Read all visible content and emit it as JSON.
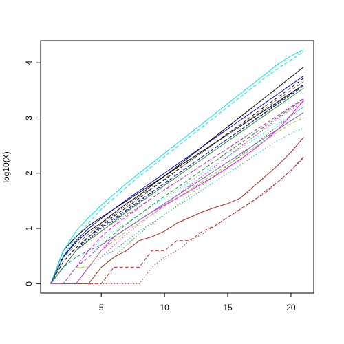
{
  "chart_data": {
    "type": "line",
    "title": "",
    "xlabel": "",
    "ylabel": "log10(X)",
    "xlim": [
      0.2,
      21.8
    ],
    "ylim": [
      -0.17,
      4.4
    ],
    "x_ticks": [
      "5",
      "10",
      "15",
      "20"
    ],
    "y_ticks": [
      "0",
      "1",
      "2",
      "3",
      "4"
    ],
    "grid": false,
    "legend": "none",
    "x": [
      1,
      2,
      3,
      4,
      5,
      6,
      7,
      8,
      9,
      10,
      11,
      12,
      13,
      14,
      15,
      16,
      17,
      18,
      19,
      20,
      21
    ],
    "series": [
      {
        "color": "#000000",
        "dash": "solid",
        "values": [
          0,
          0.6,
          0.85,
          1.05,
          1.2,
          1.35,
          1.5,
          1.65,
          1.8,
          1.95,
          2.1,
          2.25,
          2.4,
          2.55,
          2.7,
          2.85,
          3.0,
          3.15,
          3.3,
          3.45,
          3.6
        ]
      },
      {
        "color": "#000000",
        "dash": "solid",
        "values": [
          0,
          0.5,
          0.75,
          0.95,
          1.1,
          1.28,
          1.45,
          1.6,
          1.78,
          1.95,
          2.12,
          2.3,
          2.48,
          2.66,
          2.84,
          3.02,
          3.2,
          3.38,
          3.56,
          3.74,
          3.92
        ]
      },
      {
        "color": "#000000",
        "dash": "dashed",
        "values": [
          0,
          0.4,
          0.65,
          0.85,
          1.05,
          1.22,
          1.38,
          1.55,
          1.72,
          1.88,
          2.05,
          2.22,
          2.38,
          2.55,
          2.72,
          2.88,
          3.05,
          3.22,
          3.38,
          3.55,
          3.72
        ]
      },
      {
        "color": "#000000",
        "dash": "dotted",
        "values": [
          0,
          0.3,
          0.6,
          0.8,
          1.0,
          1.15,
          1.32,
          1.48,
          1.65,
          1.8,
          1.97,
          2.13,
          2.3,
          2.46,
          2.62,
          2.78,
          2.95,
          3.11,
          3.28,
          3.44,
          3.6
        ]
      },
      {
        "color": "#00e5ee",
        "dash": "solid",
        "values": [
          0,
          0.6,
          0.95,
          1.2,
          1.42,
          1.62,
          1.82,
          2.0,
          2.18,
          2.36,
          2.54,
          2.72,
          2.9,
          3.08,
          3.26,
          3.44,
          3.62,
          3.8,
          3.98,
          4.12,
          4.24
        ]
      },
      {
        "color": "#00e5ee",
        "dash": "dashed",
        "values": [
          0,
          0.5,
          0.85,
          1.1,
          1.35,
          1.55,
          1.75,
          1.95,
          2.12,
          2.3,
          2.48,
          2.66,
          2.84,
          3.02,
          3.2,
          3.38,
          3.56,
          3.74,
          3.9,
          4.05,
          4.2
        ]
      },
      {
        "color": "#00e5ee",
        "dash": "dotted",
        "values": [
          0,
          0,
          0.3,
          0.6,
          0.8,
          0.95,
          1.1,
          1.25,
          1.4,
          1.55,
          1.7,
          1.85,
          2.0,
          2.15,
          2.3,
          2.45,
          2.6,
          2.75,
          2.9,
          3.05,
          3.2
        ]
      },
      {
        "color": "#ff00ff",
        "dash": "solid",
        "values": [
          0,
          0,
          0,
          0.3,
          0.6,
          0.85,
          1.0,
          1.15,
          1.3,
          1.42,
          1.55,
          1.68,
          1.82,
          1.95,
          2.1,
          2.25,
          2.42,
          2.6,
          2.8,
          3.05,
          3.32
        ]
      },
      {
        "color": "#ff00ff",
        "dash": "dashed",
        "values": [
          0,
          0,
          0.3,
          0.6,
          0.85,
          1.05,
          1.22,
          1.38,
          1.55,
          1.7,
          1.85,
          2.0,
          2.15,
          2.3,
          2.45,
          2.6,
          2.75,
          2.9,
          3.05,
          3.2,
          3.35
        ]
      },
      {
        "color": "#ff00ff",
        "dash": "dotted",
        "values": [
          0,
          0,
          0,
          0.3,
          0.48,
          0.7,
          0.9,
          1.08,
          1.25,
          1.42,
          1.6,
          1.78,
          1.95,
          2.12,
          2.3,
          2.48,
          2.65,
          2.82,
          3.0,
          3.15,
          3.3
        ]
      },
      {
        "color": "#b22222",
        "dash": "solid",
        "values": [
          0,
          0,
          0,
          0,
          0.3,
          0.48,
          0.6,
          0.78,
          0.85,
          0.95,
          1.1,
          1.2,
          1.3,
          1.38,
          1.45,
          1.55,
          1.75,
          1.95,
          2.15,
          2.38,
          2.65
        ]
      },
      {
        "color": "#b22222",
        "dash": "dashed",
        "values": [
          0,
          0,
          0,
          0,
          0,
          0.3,
          0.3,
          0.3,
          0.6,
          0.6,
          0.78,
          0.78,
          0.95,
          1.05,
          1.2,
          1.35,
          1.5,
          1.65,
          1.85,
          2.05,
          2.3
        ]
      },
      {
        "color": "#b22222",
        "dash": "dotted",
        "values": [
          0,
          0,
          0,
          0,
          0,
          0,
          0,
          0,
          0.3,
          0.48,
          0.6,
          0.78,
          0.9,
          1.05,
          1.2,
          1.35,
          1.5,
          1.68,
          1.85,
          2.05,
          2.28
        ]
      },
      {
        "color": "#0000cd",
        "dash": "solid",
        "values": [
          0,
          0.48,
          0.78,
          1.0,
          1.18,
          1.35,
          1.52,
          1.68,
          1.84,
          2.0,
          2.16,
          2.32,
          2.48,
          2.64,
          2.8,
          2.96,
          3.12,
          3.28,
          3.44,
          3.6,
          3.76
        ]
      },
      {
        "color": "#0000cd",
        "dash": "dashed",
        "values": [
          0,
          0.3,
          0.6,
          0.85,
          1.02,
          1.18,
          1.34,
          1.5,
          1.66,
          1.82,
          1.98,
          2.14,
          2.3,
          2.46,
          2.62,
          2.78,
          2.94,
          3.1,
          3.26,
          3.42,
          3.58
        ]
      },
      {
        "color": "#228b22",
        "dash": "solid",
        "values": [
          0,
          0.3,
          0.6,
          0.78,
          0.95,
          1.12,
          1.3,
          1.46,
          1.62,
          1.78,
          1.94,
          2.1,
          2.26,
          2.42,
          2.58,
          2.74,
          2.9,
          3.06,
          3.22,
          3.38,
          3.54
        ]
      },
      {
        "color": "#228b22",
        "dash": "dashed",
        "values": [
          0,
          0,
          0.3,
          0.48,
          0.7,
          0.9,
          1.08,
          1.25,
          1.42,
          1.58,
          1.74,
          1.9,
          2.06,
          2.22,
          2.38,
          2.54,
          2.7,
          2.86,
          3.02,
          3.18,
          3.34
        ]
      },
      {
        "color": "#228b22",
        "dash": "dotted",
        "values": [
          0,
          0,
          0,
          0,
          0.3,
          0.48,
          0.7,
          0.9,
          1.08,
          1.25,
          1.42,
          1.6,
          1.78,
          1.96,
          2.14,
          2.32,
          2.5,
          2.68,
          2.86,
          3.04,
          3.2
        ]
      },
      {
        "color": "#008b8b",
        "dash": "dashed",
        "values": [
          0,
          0.3,
          0.48,
          0.6,
          0.7,
          0.85,
          1.0,
          1.15,
          1.3,
          1.45,
          1.6,
          1.75,
          1.9,
          2.05,
          2.2,
          2.35,
          2.5,
          2.65,
          2.8,
          2.95,
          3.1
        ]
      },
      {
        "color": "#696969",
        "dash": "dashed",
        "values": [
          0,
          0.48,
          0.7,
          0.9,
          1.08,
          1.25,
          1.42,
          1.58,
          1.74,
          1.9,
          2.06,
          2.22,
          2.38,
          2.54,
          2.7,
          2.86,
          3.02,
          3.18,
          3.34,
          3.5,
          3.66
        ]
      },
      {
        "color": "#696969",
        "dash": "dotted",
        "values": [
          0,
          0.3,
          0.6,
          0.78,
          0.95,
          1.1,
          1.25,
          1.4,
          1.55,
          1.7,
          1.85,
          2.0,
          2.15,
          2.3,
          2.45,
          2.6,
          2.75,
          2.9,
          3.05,
          3.2,
          3.35
        ]
      },
      {
        "color": "#9acd32",
        "dash": "dashed",
        "values": [
          0,
          0,
          0.3,
          0.3,
          0.6,
          0.78,
          0.95,
          1.1,
          1.25,
          1.4,
          1.55,
          1.7,
          1.85,
          2.0,
          2.15,
          2.3,
          2.45,
          2.6,
          2.75,
          2.9,
          3.0
        ]
      },
      {
        "color": "#20b2aa",
        "dash": "dotted",
        "values": [
          0,
          0,
          0,
          0.3,
          0.48,
          0.6,
          0.78,
          0.95,
          1.1,
          1.25,
          1.4,
          1.55,
          1.7,
          1.85,
          2.0,
          2.15,
          2.3,
          2.45,
          2.6,
          2.72,
          2.82
        ]
      },
      {
        "color": "#ba55d3",
        "dash": "dashed",
        "values": [
          0,
          0,
          0.3,
          0.48,
          0.7,
          0.85,
          1.0,
          1.15,
          1.3,
          1.45,
          1.6,
          1.75,
          1.9,
          2.05,
          2.2,
          2.35,
          2.5,
          2.65,
          2.8,
          2.95,
          3.1
        ]
      }
    ]
  }
}
